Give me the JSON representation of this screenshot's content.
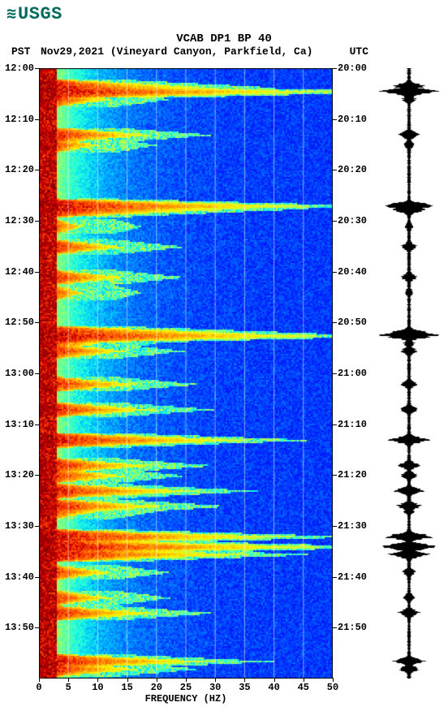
{
  "logo_text": "USGS",
  "title": "VCAB DP1 BP 40",
  "subtitle_left": "PST",
  "subtitle_mid": "Nov29,2021 (Vineyard Canyon, Parkfield, Ca)",
  "subtitle_right": "UTC",
  "xlabel": "FREQUENCY (HZ)",
  "spectrogram": {
    "xlim": [
      0,
      50
    ],
    "ylim_pst": [
      "12:00",
      "14:00"
    ],
    "ylim_utc": [
      "20:00",
      "22:00"
    ],
    "xtick_step": 5,
    "xtick_labels": [
      "0",
      "5",
      "10",
      "15",
      "20",
      "25",
      "30",
      "35",
      "40",
      "45",
      "50"
    ],
    "ytick_step_min": 10,
    "ytick_labels_pst": [
      "12:00",
      "12:10",
      "12:20",
      "12:30",
      "12:40",
      "12:50",
      "13:00",
      "13:10",
      "13:20",
      "13:30",
      "13:40",
      "13:50"
    ],
    "ytick_labels_utc": [
      "20:00",
      "20:10",
      "20:20",
      "20:30",
      "20:40",
      "20:50",
      "21:00",
      "21:10",
      "21:20",
      "21:30",
      "21:40",
      "21:50"
    ],
    "colormap": [
      "#00007f",
      "#0000cf",
      "#0020ff",
      "#0070ff",
      "#00c0ff",
      "#20ffdf",
      "#70ff8f",
      "#c0ff3f",
      "#ffef00",
      "#ff9f00",
      "#ff4f00",
      "#cf0000",
      "#7f0000"
    ],
    "background": "#0000a8",
    "low_freq_band_hz": 3,
    "events_min": [
      3.5,
      4.5,
      6,
      13,
      15,
      27,
      27.7,
      31,
      35,
      41,
      44,
      52,
      52.5,
      54,
      55.5,
      62,
      67,
      73,
      78,
      80,
      83,
      86,
      87,
      92,
      94,
      95.5,
      99,
      104,
      107,
      116.5,
      118
    ],
    "event_amp": [
      0.5,
      1.0,
      0.2,
      0.35,
      0.15,
      0.95,
      0.6,
      0.1,
      0.25,
      0.25,
      0.1,
      0.7,
      1.0,
      0.15,
      0.25,
      0.3,
      0.35,
      0.7,
      0.35,
      0.25,
      0.5,
      0.4,
      0.15,
      0.85,
      1.0,
      0.7,
      0.2,
      0.2,
      0.35,
      0.55,
      0.3
    ]
  },
  "fonts": {
    "title_size": 14,
    "tick_size": 12,
    "label_size": 12
  }
}
